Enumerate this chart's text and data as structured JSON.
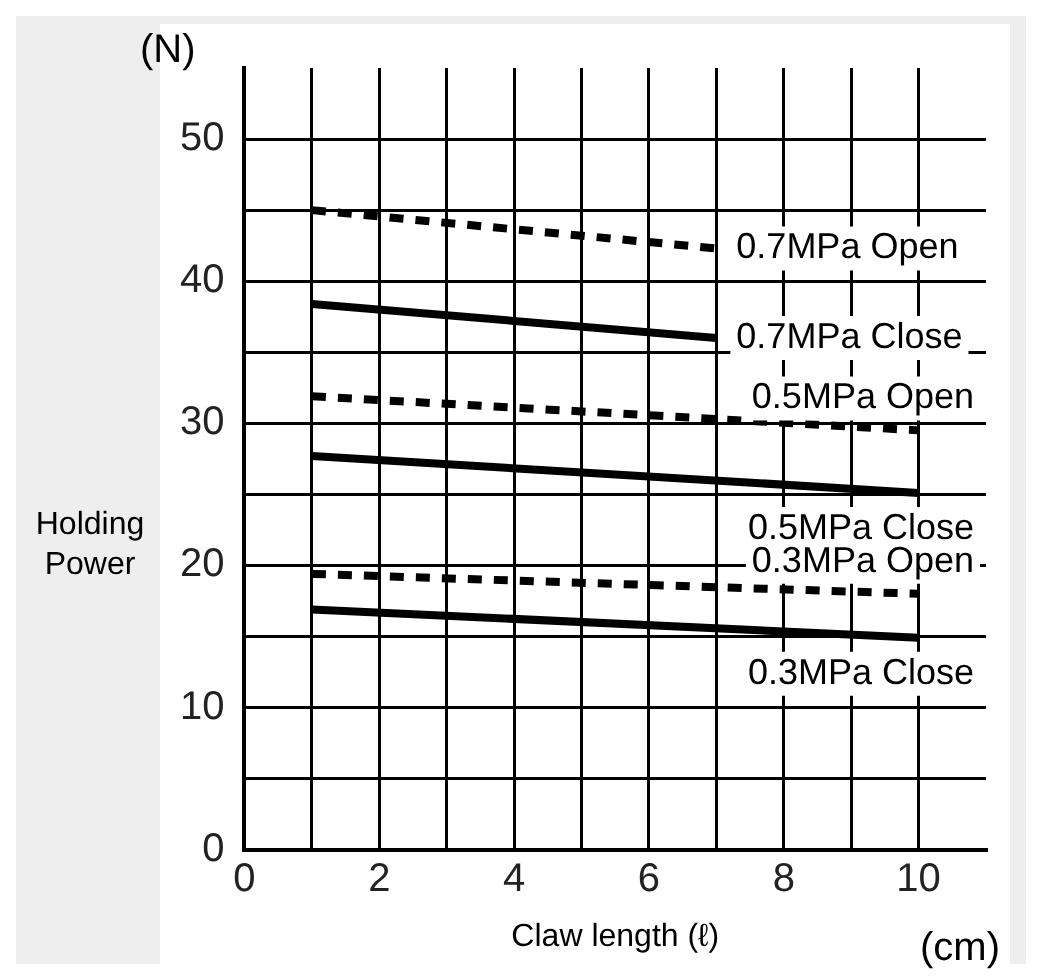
{
  "chart_data": {
    "type": "line",
    "xlabel": "Claw length (ℓ)",
    "ylabel": "Holding Power",
    "annotations": [
      "(N)",
      "(cm)"
    ],
    "xlim": [
      0,
      11
    ],
    "ylim": [
      0,
      55
    ],
    "xticks": [
      0,
      {
        "value": 1,
        "label": null
      },
      2,
      {
        "value": 3,
        "label": null
      },
      4,
      {
        "value": 5,
        "label": null
      },
      6,
      {
        "value": 7,
        "label": null
      },
      8,
      {
        "value": 9,
        "label": null
      },
      10
    ],
    "yticks": [
      0,
      {
        "value": 5,
        "label": null
      },
      10,
      {
        "value": 15,
        "label": null
      },
      20,
      {
        "value": 25,
        "label": null
      },
      30,
      {
        "value": 35,
        "label": null
      },
      40,
      {
        "value": 45,
        "label": null
      },
      50
    ],
    "grid": true,
    "legend": false,
    "marker": "none",
    "series": [
      {
        "name": "0.7MPa Open",
        "color": "#000000",
        "line_style": "dashed",
        "x": [
          1,
          7
        ],
        "values": [
          45,
          42.3
        ]
      },
      {
        "name": "0.7MPa Close",
        "color": "#000000",
        "line_style": "solid",
        "x": [
          1,
          7
        ],
        "values": [
          38.4,
          36
        ]
      },
      {
        "name": "0.5MPa Open",
        "color": "#000000",
        "line_style": "dashed",
        "x": [
          1,
          10
        ],
        "values": [
          31.9,
          29.5
        ]
      },
      {
        "name": "0.5MPa Close",
        "color": "#000000",
        "line_style": "solid",
        "x": [
          1,
          10
        ],
        "values": [
          27.7,
          25.1
        ]
      },
      {
        "name": "0.3MPa Open",
        "color": "#000000",
        "line_style": "dashed",
        "x": [
          1,
          10
        ],
        "values": [
          19.4,
          18
        ]
      },
      {
        "name": "0.3MPa Close",
        "color": "#000000",
        "line_style": "solid",
        "x": [
          1,
          10
        ],
        "values": [
          16.9,
          14.9
        ]
      }
    ]
  }
}
